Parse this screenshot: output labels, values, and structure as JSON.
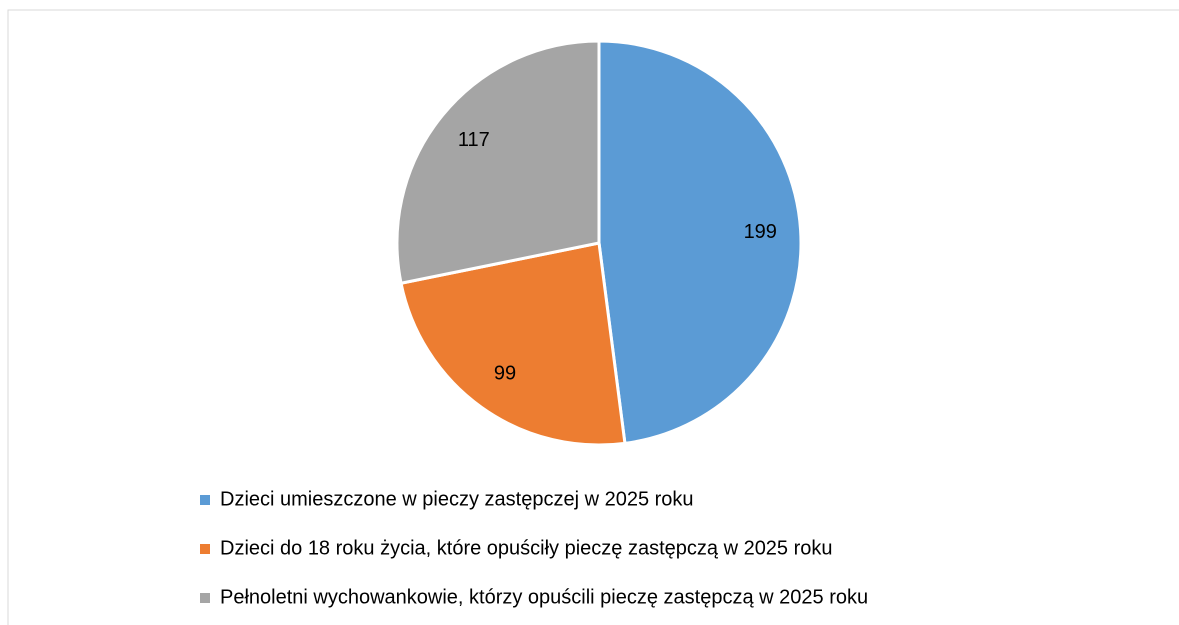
{
  "chart_data": {
    "type": "pie",
    "categories": [
      "Dzieci umieszczone w pieczy zastępczej w 2025 roku",
      "Dzieci do 18 roku życia, które opuściły pieczę zastępczą w 2025 roku",
      "Pełnoletni wychowankowie, którzy opuścili pieczę zastępczą w 2025 roku"
    ],
    "values": [
      199,
      99,
      117
    ],
    "colors": [
      "#5b9bd5",
      "#ed7d31",
      "#a5a5a5"
    ],
    "legend": "bottom"
  }
}
